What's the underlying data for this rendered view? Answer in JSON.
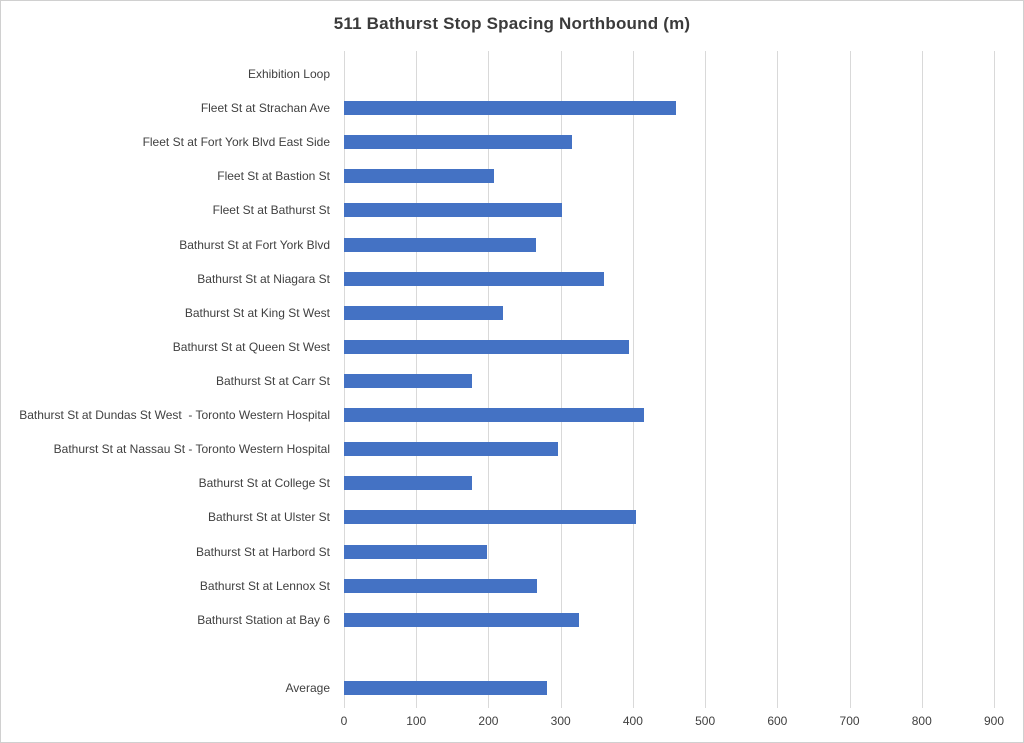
{
  "chart_data": {
    "type": "bar",
    "orientation": "horizontal",
    "title": "511 Bathurst Stop Spacing Northbound (m)",
    "categories": [
      "Exhibition Loop",
      "Fleet St at Strachan Ave",
      "Fleet St at Fort York Blvd East Side",
      "Fleet St at Bastion St",
      "Fleet St at Bathurst St",
      "Bathurst St at Fort York Blvd",
      "Bathurst St at Niagara St",
      "Bathurst St at King St West",
      "Bathurst St at Queen St West",
      "Bathurst St at Carr St",
      "Bathurst St at Dundas St West  - Toronto Western Hospital",
      "Bathurst St at Nassau St - Toronto Western Hospital",
      "Bathurst St at College St",
      "Bathurst St at Ulster St",
      "Bathurst St at Harbord St",
      "Bathurst St at Lennox St",
      "Bathurst Station at Bay 6",
      "",
      "Average"
    ],
    "values": [
      0,
      460,
      315,
      208,
      302,
      266,
      360,
      220,
      395,
      177,
      416,
      296,
      177,
      404,
      198,
      267,
      325,
      null,
      281
    ],
    "xlabel": "",
    "ylabel": "",
    "xlim": [
      0,
      900
    ],
    "xticks": [
      0,
      100,
      200,
      300,
      400,
      500,
      600,
      700,
      800,
      900
    ],
    "grid": true,
    "legend": "none",
    "bar_color": "#4472C4",
    "gridline_color": "#d9d9d9",
    "unit": "m"
  }
}
